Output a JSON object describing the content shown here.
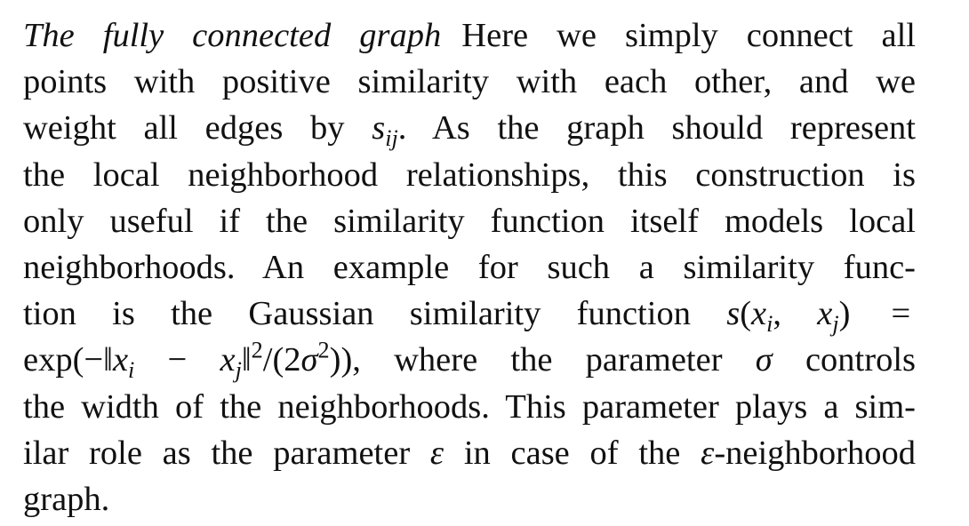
{
  "paragraph": {
    "heading": "The fully connected graph",
    "l1_text": "Here we simply connect all",
    "l2": "points with positive similarity with each other, and we",
    "l3_a": "weight all edges by",
    "l3_s": "s",
    "l3_sub": "ij",
    "l3_b": ". As the graph should represent",
    "l4": "the local neighborhood relationships, this construction is",
    "l5": "only useful if the similarity function itself models local",
    "l6": "neighborhoods. An example for such a similarity func-",
    "l7_a": "tion is the Gaussian similarity function",
    "l7_math": {
      "s": "s",
      "open": "(",
      "x1": "x",
      "i1": "i",
      "comma": ",",
      "x2": "x",
      "j1": "j",
      "close": ")",
      "eq": "="
    },
    "l8_math": {
      "exp": "exp(−‖",
      "x1": "x",
      "i": "i",
      "minus": " − ",
      "x2": "x",
      "j": "j",
      "norm_close": "‖",
      "sq": "2",
      "div": "/(2",
      "sigma": "σ",
      "sq2": "2",
      "end": ")),"
    },
    "l8_b": "where the parameter",
    "l8_sigma": "σ",
    "l8_c": "controls",
    "l9": "the width of the neighborhoods. This parameter plays a sim-",
    "l10_a": "ilar role as the parameter",
    "l10_eps": "ε",
    "l10_b": "in case of the",
    "l10_eps2": "ε",
    "l10_c": "-neighborhood",
    "l11": "graph."
  }
}
